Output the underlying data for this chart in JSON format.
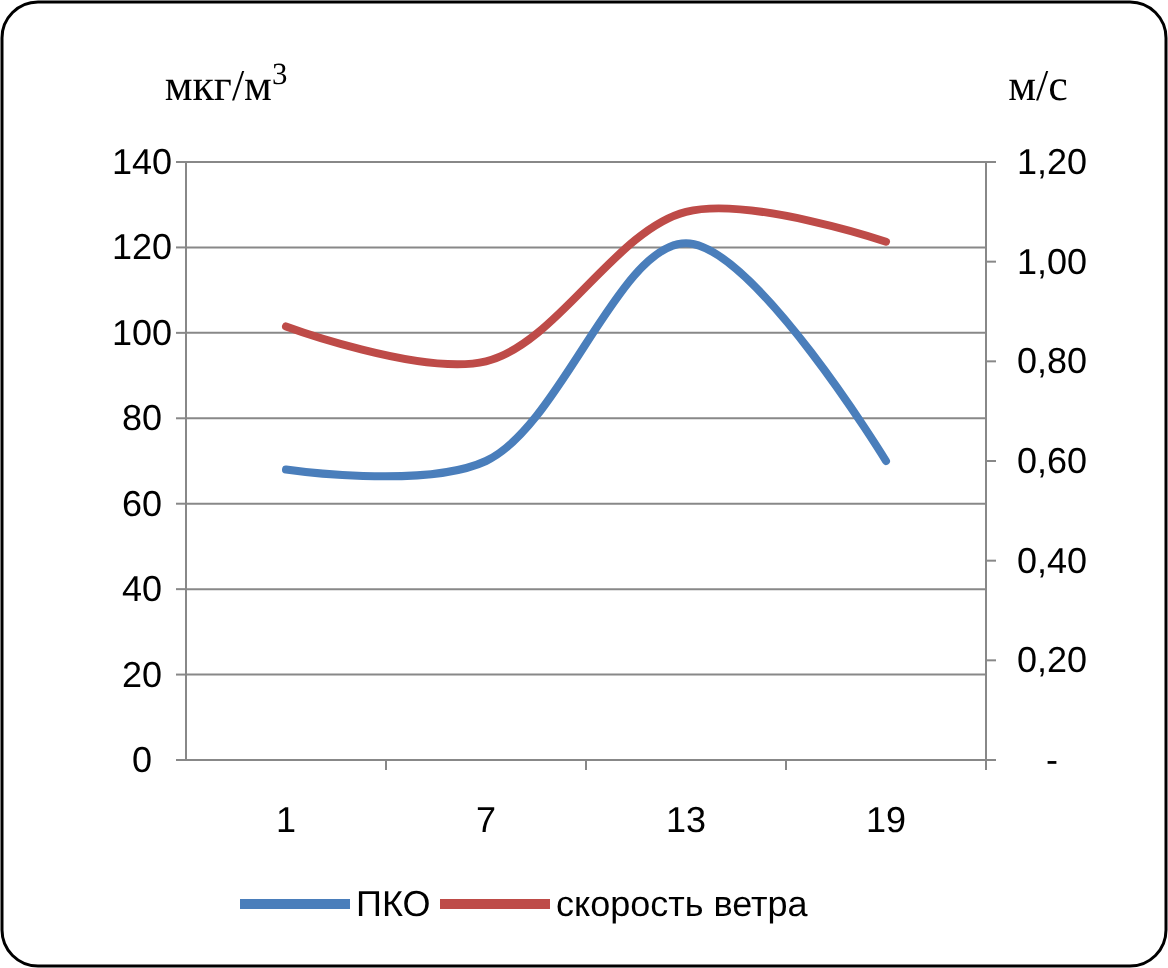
{
  "chart_data": {
    "type": "line",
    "ylabel": "мкг/м$^{3}$",
    "y2label": "м/с",
    "categories": [
      "1",
      "7",
      "13",
      "19"
    ],
    "series": [
      {
        "name": "ПКО",
        "color": "#4a7ebb",
        "values": [
          68,
          70,
          121,
          70
        ]
      },
      {
        "name": "скорость ветра",
        "color": "#be4b48",
        "values": [
          0.87,
          0.8,
          1.1,
          1.04
        ],
        "axis": "y2"
      }
    ],
    "ylim": [
      0,
      140
    ],
    "yticks": [
      0,
      20,
      40,
      60,
      80,
      100,
      120,
      140
    ],
    "y2lim": [
      0,
      1.2
    ],
    "y2ticks": [
      {
        "value": 0,
        "label": "-"
      },
      {
        "value": 0.2,
        "label": "0,20"
      },
      {
        "value": 0.4,
        "label": "0,40"
      },
      {
        "value": 0.6,
        "label": "0,60"
      },
      {
        "value": 0.8,
        "label": "0,80"
      },
      {
        "value": 1.0,
        "label": "1,00"
      },
      {
        "value": 1.2,
        "label": "1,20"
      }
    ],
    "grid": "y",
    "legend": "bottom",
    "marker": "none",
    "line_style": "solid"
  }
}
